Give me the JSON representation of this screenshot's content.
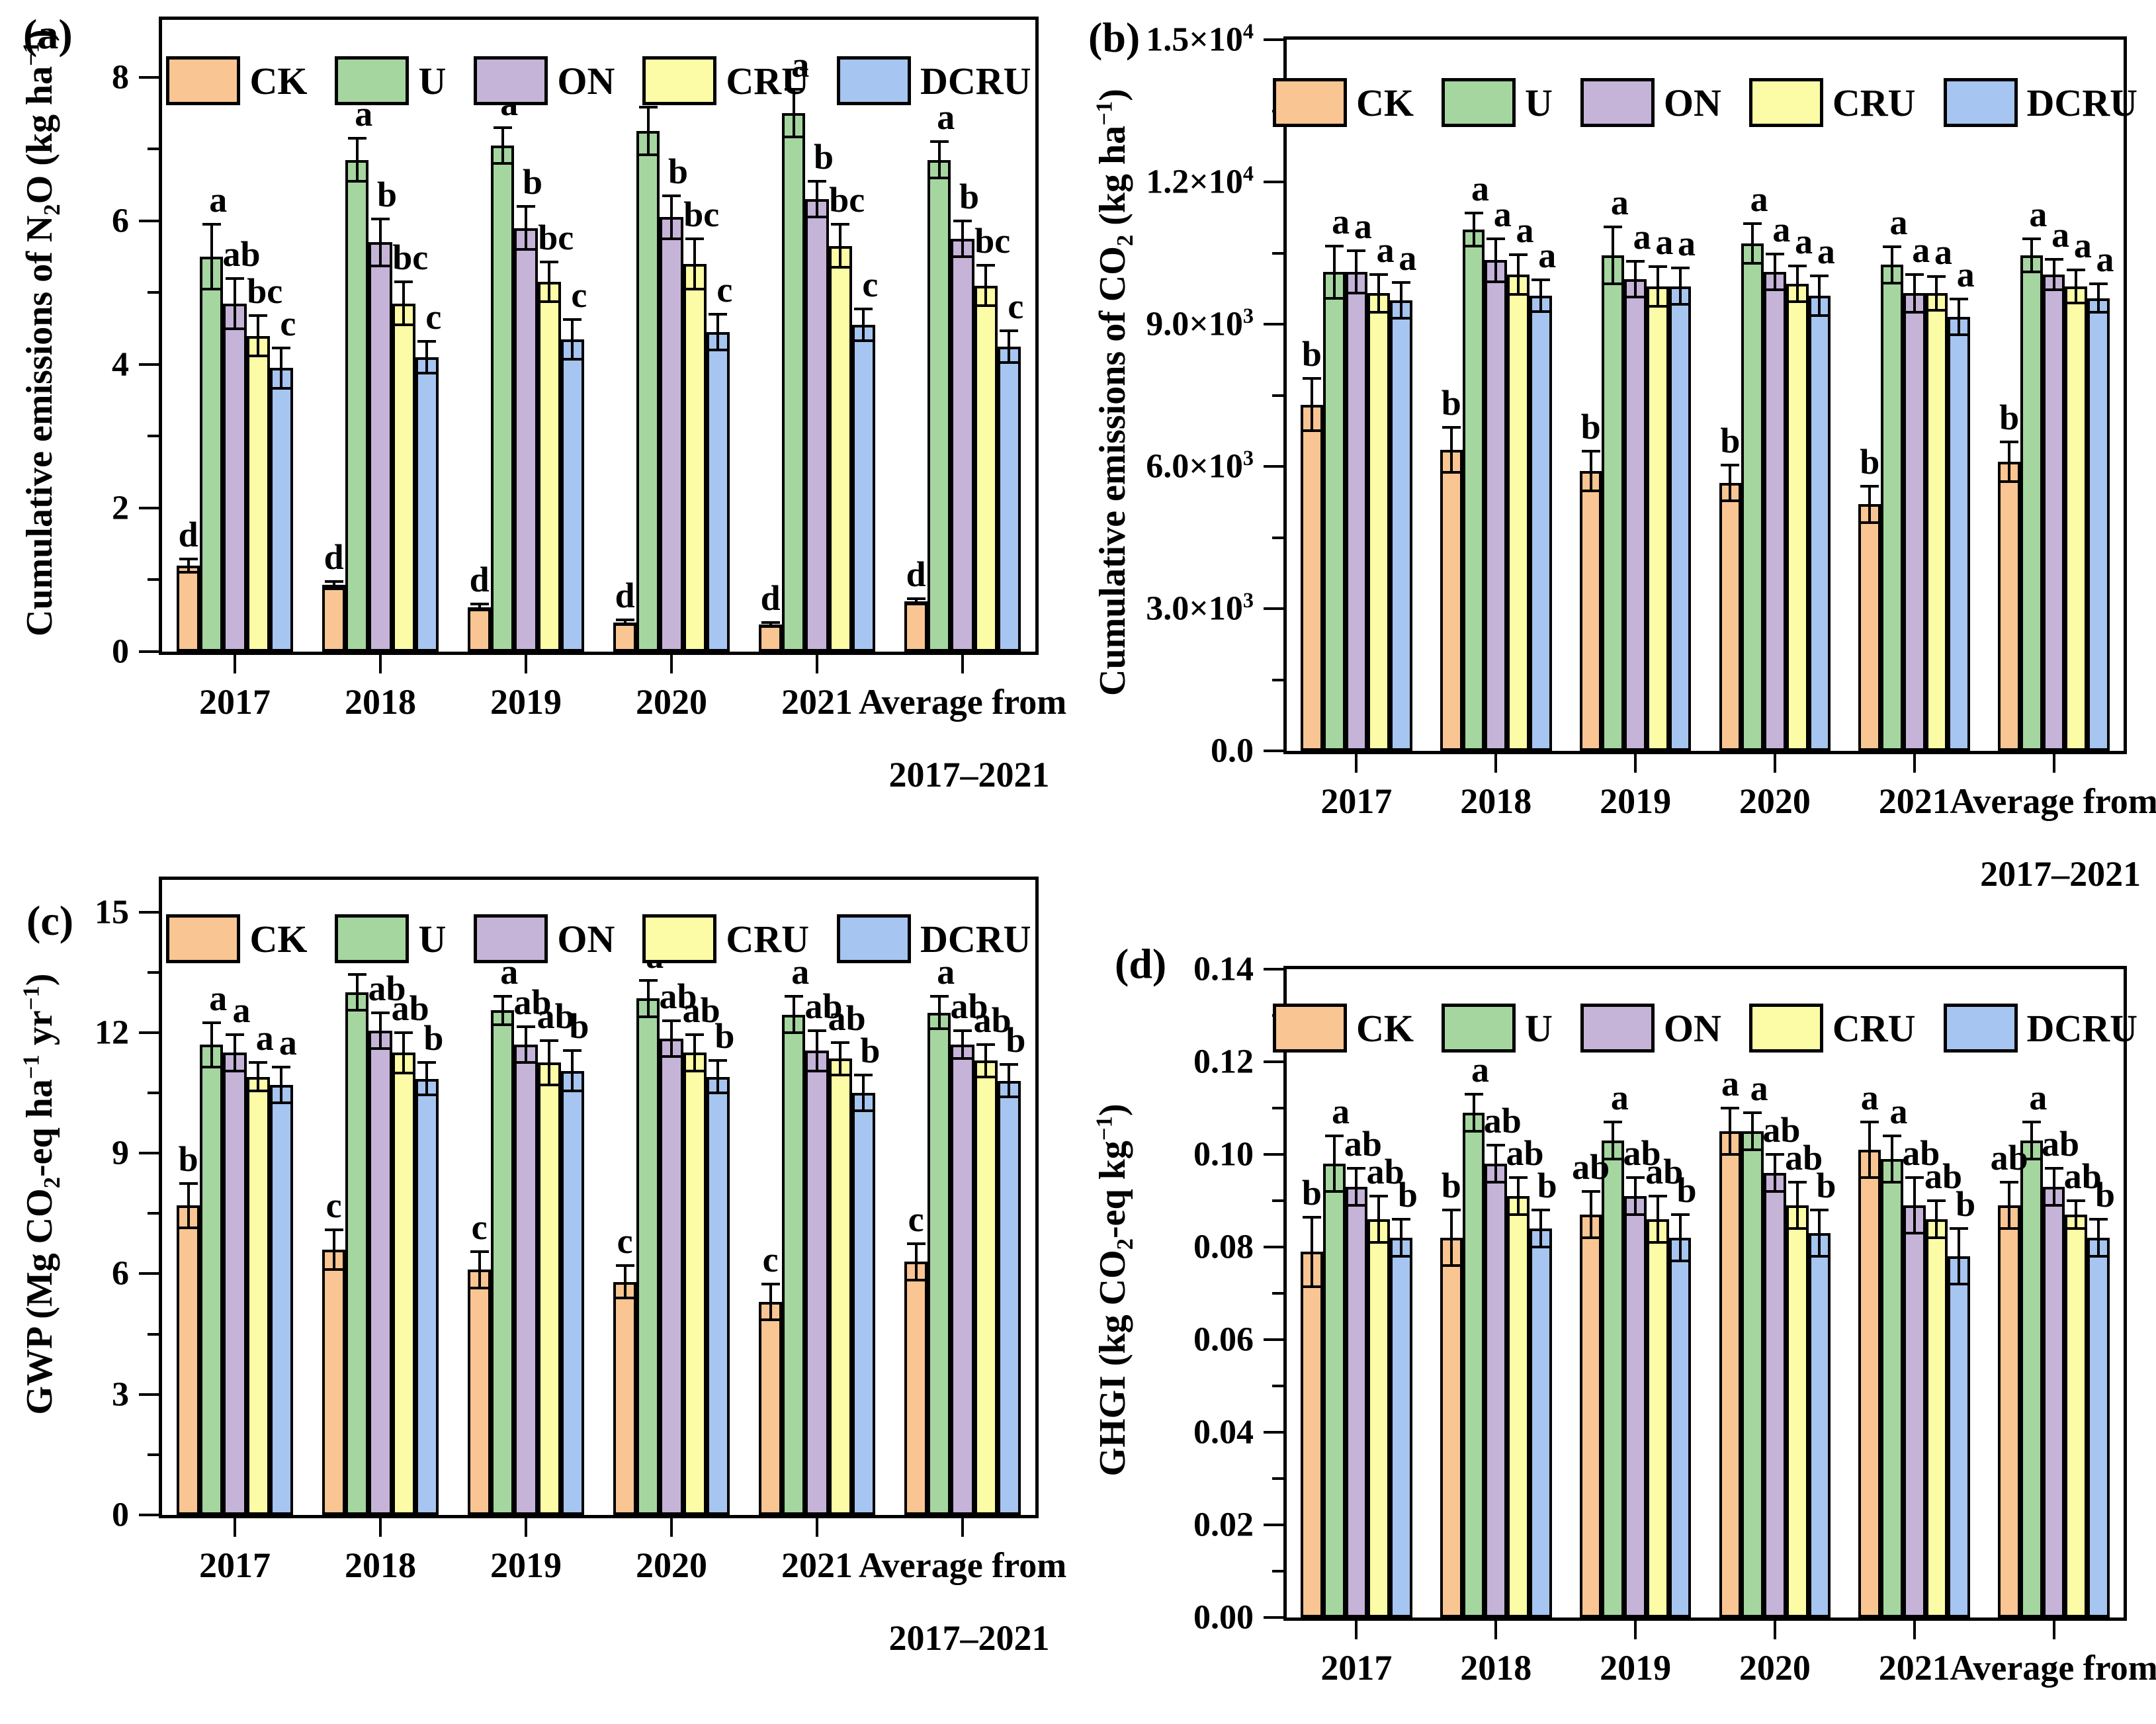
{
  "figure": {
    "background": "#ffffff",
    "frame_color": "#000000",
    "legend_entries": [
      "CK",
      "U",
      "ON",
      "CRU",
      "DCRU"
    ],
    "series_colors": {
      "CK": "#F9C592",
      "U": "#A5D6A0",
      "ON": "#C5B3D8",
      "CRU": "#FDFCA6",
      "DCRU": "#A6C5F0"
    }
  },
  "chart_data": [
    {
      "id": "a",
      "tag": "(a)",
      "type": "bar",
      "ylabel": "Cumulative emissions of N_{2}O (kg ha^{−1})",
      "ylim": [
        0,
        8.8
      ],
      "grid": false,
      "legend_position": "top-inside",
      "yticks": [
        {
          "v": 0,
          "label": "0"
        },
        {
          "v": 2,
          "label": "2"
        },
        {
          "v": 4,
          "label": "4"
        },
        {
          "v": 6,
          "label": "6"
        },
        {
          "v": 8,
          "label": "8"
        }
      ],
      "yminor": [
        1,
        3,
        5,
        7
      ],
      "categories": [
        "2017",
        "2018",
        "2019",
        "2020",
        "2021",
        "Average from"
      ],
      "category_line2": "2017–2021",
      "series": [
        {
          "name": "CK",
          "values": [
            1.2,
            0.93,
            0.62,
            0.41,
            0.38,
            0.7
          ],
          "errors": [
            0.09,
            0.05,
            0.04,
            0.03,
            0.03,
            0.04
          ],
          "letters": [
            "d",
            "d",
            "d",
            "d",
            "d",
            "d"
          ]
        },
        {
          "name": "U",
          "values": [
            5.5,
            6.85,
            7.05,
            7.25,
            7.5,
            6.85
          ],
          "errors": [
            0.45,
            0.3,
            0.25,
            0.33,
            0.33,
            0.25
          ],
          "letters": [
            "a",
            "a",
            "a",
            "a",
            "a",
            "a"
          ]
        },
        {
          "name": "ON",
          "values": [
            4.85,
            5.7,
            5.9,
            6.05,
            6.3,
            5.75
          ],
          "errors": [
            0.35,
            0.33,
            0.3,
            0.3,
            0.25,
            0.25
          ],
          "letters": [
            "ab",
            "b",
            "b",
            "b",
            "b",
            "b"
          ]
        },
        {
          "name": "CRU",
          "values": [
            4.4,
            4.85,
            5.15,
            5.4,
            5.65,
            5.1
          ],
          "errors": [
            0.28,
            0.3,
            0.28,
            0.35,
            0.3,
            0.28
          ],
          "letters": [
            "bc",
            "bc",
            "bc",
            "bc",
            "bc",
            "bc"
          ]
        },
        {
          "name": "DCRU",
          "values": [
            3.95,
            4.1,
            4.35,
            4.45,
            4.55,
            4.25
          ],
          "errors": [
            0.28,
            0.22,
            0.28,
            0.25,
            0.22,
            0.22
          ],
          "letters": [
            "c",
            "c",
            "c",
            "c",
            "c",
            "c"
          ]
        }
      ]
    },
    {
      "id": "b",
      "tag": "(b)",
      "type": "bar",
      "ylabel": "Cumulative emissions of CO_{2} (kg ha^{−1})",
      "ylim": [
        0,
        15000
      ],
      "grid": false,
      "legend_position": "top-inside",
      "yticks": [
        {
          "v": 0,
          "label": "0.0"
        },
        {
          "v": 3000,
          "label": "3.0×10^{3}"
        },
        {
          "v": 6000,
          "label": "6.0×10^{3}"
        },
        {
          "v": 9000,
          "label": "9.0×10^{3}"
        },
        {
          "v": 12000,
          "label": "1.2×10^{4}"
        },
        {
          "v": 15000,
          "label": "1.5×10^{4}"
        }
      ],
      "yminor": [
        1500,
        4500,
        7500,
        10500,
        13500
      ],
      "categories": [
        "2017",
        "2018",
        "2019",
        "2020",
        "2021",
        "Average from"
      ],
      "category_line2": "2017–2021",
      "series": [
        {
          "name": "CK",
          "values": [
            7300,
            6350,
            5900,
            5650,
            5200,
            6100
          ],
          "errors": [
            550,
            480,
            420,
            380,
            380,
            420
          ],
          "letters": [
            "b",
            "b",
            "b",
            "b",
            "b",
            "b"
          ]
        },
        {
          "name": "U",
          "values": [
            10100,
            11000,
            10450,
            10700,
            10250,
            10450
          ],
          "errors": [
            550,
            350,
            600,
            420,
            380,
            350
          ],
          "letters": [
            "a",
            "a",
            "a",
            "a",
            "a",
            "a"
          ]
        },
        {
          "name": "ON",
          "values": [
            10100,
            10350,
            9950,
            10100,
            9650,
            10050
          ],
          "errors": [
            450,
            450,
            380,
            380,
            400,
            320
          ],
          "letters": [
            "a",
            "a",
            "a",
            "a",
            "a",
            "a"
          ]
        },
        {
          "name": "CRU",
          "values": [
            9650,
            10050,
            9800,
            9850,
            9650,
            9800
          ],
          "errors": [
            400,
            420,
            420,
            380,
            350,
            350
          ],
          "letters": [
            "a",
            "a",
            "a",
            "a",
            "a",
            "a"
          ]
        },
        {
          "name": "DCRU",
          "values": [
            9500,
            9600,
            9800,
            9600,
            9150,
            9550
          ],
          "errors": [
            380,
            330,
            380,
            420,
            380,
            300
          ],
          "letters": [
            "a",
            "a",
            "a",
            "a",
            "a",
            "a"
          ]
        }
      ]
    },
    {
      "id": "c",
      "tag": "(c)",
      "type": "bar",
      "ylabel": "GWP (Mg CO_{2}-eq ha^{−1} yr^{−1})",
      "ylim": [
        0,
        15.8
      ],
      "grid": false,
      "legend_position": "top-inside",
      "yticks": [
        {
          "v": 0,
          "label": "0"
        },
        {
          "v": 3,
          "label": "3"
        },
        {
          "v": 6,
          "label": "6"
        },
        {
          "v": 9,
          "label": "9"
        },
        {
          "v": 12,
          "label": "12"
        },
        {
          "v": 15,
          "label": "15"
        }
      ],
      "yminor": [
        1.5,
        4.5,
        7.5,
        10.5,
        13.5
      ],
      "categories": [
        "2017",
        "2018",
        "2019",
        "2020",
        "2021",
        "Average from"
      ],
      "category_line2": "2017–2021",
      "series": [
        {
          "name": "CK",
          "values": [
            7.7,
            6.6,
            6.1,
            5.8,
            5.3,
            6.3
          ],
          "errors": [
            0.55,
            0.5,
            0.45,
            0.4,
            0.45,
            0.45
          ],
          "letters": [
            "b",
            "c",
            "c",
            "c",
            "c",
            "c"
          ]
        },
        {
          "name": "U",
          "values": [
            11.7,
            13.0,
            12.55,
            12.85,
            12.45,
            12.5
          ],
          "errors": [
            0.55,
            0.45,
            0.35,
            0.45,
            0.45,
            0.4
          ],
          "letters": [
            "a",
            "a",
            "a",
            "a",
            "a",
            "a"
          ]
        },
        {
          "name": "ON",
          "values": [
            11.5,
            12.05,
            11.7,
            11.85,
            11.55,
            11.7
          ],
          "errors": [
            0.45,
            0.45,
            0.45,
            0.45,
            0.5,
            0.35
          ],
          "letters": [
            "a",
            "ab",
            "ab",
            "ab",
            "ab",
            "ab"
          ]
        },
        {
          "name": "CRU",
          "values": [
            10.9,
            11.5,
            11.25,
            11.5,
            11.35,
            11.3
          ],
          "errors": [
            0.35,
            0.5,
            0.55,
            0.45,
            0.4,
            0.4
          ],
          "letters": [
            "a",
            "ab",
            "ab",
            "ab",
            "ab",
            "ab"
          ]
        },
        {
          "name": "DCRU",
          "values": [
            10.7,
            10.85,
            11.05,
            10.9,
            10.5,
            10.8
          ],
          "errors": [
            0.45,
            0.4,
            0.5,
            0.4,
            0.45,
            0.4
          ],
          "letters": [
            "a",
            "b",
            "b",
            "b",
            "b",
            "b"
          ]
        }
      ]
    },
    {
      "id": "d",
      "tag": "(d)",
      "type": "bar",
      "ylabel": "GHGI (kg CO_{2}-eq kg^{−1})",
      "ylim": [
        0,
        0.14
      ],
      "grid": false,
      "legend_position": "top-inside",
      "yticks": [
        {
          "v": 0,
          "label": "0.00"
        },
        {
          "v": 0.02,
          "label": "0.02"
        },
        {
          "v": 0.04,
          "label": "0.04"
        },
        {
          "v": 0.06,
          "label": "0.06"
        },
        {
          "v": 0.08,
          "label": "0.08"
        },
        {
          "v": 0.1,
          "label": "0.10"
        },
        {
          "v": 0.12,
          "label": "0.12"
        },
        {
          "v": 0.14,
          "label": "0.14"
        }
      ],
      "yminor": [
        0.01,
        0.03,
        0.05,
        0.07,
        0.09,
        0.11,
        0.13
      ],
      "categories": [
        "2017",
        "2018",
        "2019",
        "2020",
        "2021",
        "Average from"
      ],
      "category_line2": "2017–2021",
      "series": [
        {
          "name": "CK",
          "values": [
            0.079,
            0.082,
            0.087,
            0.105,
            0.101,
            0.089
          ],
          "errors": [
            0.0075,
            0.006,
            0.005,
            0.005,
            0.006,
            0.005
          ],
          "letters": [
            "b",
            "b",
            "ab",
            "a",
            "a",
            "ab"
          ]
        },
        {
          "name": "U",
          "values": [
            0.098,
            0.109,
            0.103,
            0.105,
            0.099,
            0.103
          ],
          "errors": [
            0.006,
            0.004,
            0.004,
            0.004,
            0.005,
            0.004
          ],
          "letters": [
            "a",
            "a",
            "a",
            "a",
            "a",
            "a"
          ]
        },
        {
          "name": "ON",
          "values": [
            0.093,
            0.098,
            0.091,
            0.096,
            0.089,
            0.093
          ],
          "errors": [
            0.004,
            0.004,
            0.004,
            0.004,
            0.006,
            0.004
          ],
          "letters": [
            "ab",
            "ab",
            "ab",
            "ab",
            "ab",
            "ab"
          ]
        },
        {
          "name": "CRU",
          "values": [
            0.086,
            0.091,
            0.086,
            0.089,
            0.086,
            0.087
          ],
          "errors": [
            0.005,
            0.004,
            0.005,
            0.005,
            0.004,
            0.003
          ],
          "letters": [
            "ab",
            "ab",
            "ab",
            "ab",
            "ab",
            "ab"
          ]
        },
        {
          "name": "DCRU",
          "values": [
            0.082,
            0.084,
            0.082,
            0.083,
            0.078,
            0.082
          ],
          "errors": [
            0.004,
            0.004,
            0.005,
            0.005,
            0.006,
            0.004
          ],
          "letters": [
            "b",
            "b",
            "b",
            "b",
            "b",
            "b"
          ]
        }
      ]
    }
  ]
}
